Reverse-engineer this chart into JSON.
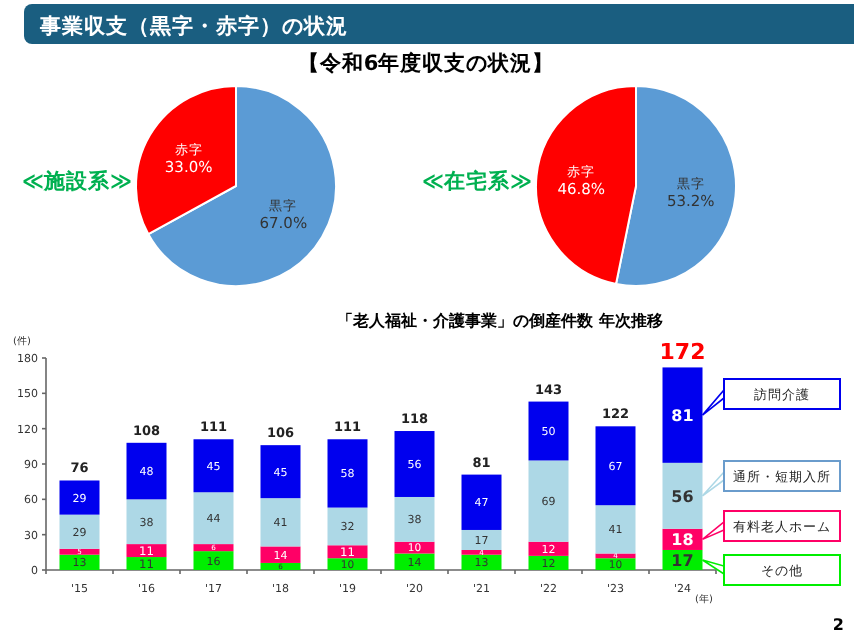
{
  "chart_data": [
    {
      "type": "other",
      "title": "事業収支（黒字・赤字）の状況",
      "subtitle": "【令和6年度収支の状況】"
    },
    {
      "type": "pie",
      "title": "≪施設系≫",
      "categories": [
        "黒字",
        "赤字"
      ],
      "values": [
        67.0,
        33.0
      ],
      "value_labels": [
        "67.0%",
        "33.0%"
      ],
      "colors": [
        "#5b9bd5",
        "#ff0000"
      ]
    },
    {
      "type": "pie",
      "title": "≪在宅系≫",
      "categories": [
        "黒字",
        "赤字"
      ],
      "values": [
        53.2,
        46.8
      ],
      "value_labels": [
        "53.2%",
        "46.8%"
      ],
      "colors": [
        "#5b9bd5",
        "#ff0000"
      ]
    },
    {
      "type": "bar",
      "stacked": true,
      "title": "「老人福祉・介護事業」の倒産件数  年次推移",
      "ylabel": "(件)",
      "xlabel": "(年)",
      "categories": [
        "'15",
        "'16",
        "'17",
        "'18",
        "'19",
        "'20",
        "'21",
        "'22",
        "'23",
        "'24"
      ],
      "series": [
        {
          "name": "その他",
          "color": "#00ee00",
          "values": [
            13,
            11,
            16,
            6,
            10,
            14,
            13,
            12,
            10,
            17
          ]
        },
        {
          "name": "有料老人ホーム",
          "color": "#ff0066",
          "values": [
            5,
            11,
            6,
            14,
            11,
            10,
            4,
            12,
            4,
            18
          ]
        },
        {
          "name": "通所・短期入所",
          "color": "#add8e6",
          "values": [
            29,
            38,
            44,
            41,
            32,
            38,
            17,
            69,
            41,
            56
          ]
        },
        {
          "name": "訪問介護",
          "color": "#0000ee",
          "values": [
            29,
            48,
            45,
            45,
            58,
            56,
            47,
            50,
            67,
            81
          ]
        }
      ],
      "totals": [
        "76",
        "108",
        "111",
        "106",
        "111",
        "118",
        "81",
        "143",
        "122",
        "172"
      ],
      "data_labels": true,
      "ylim": [
        0,
        180
      ],
      "yticks": [
        0,
        30,
        60,
        90,
        120,
        150,
        180
      ],
      "legend": "right",
      "annotations": [
        "2"
      ]
    }
  ]
}
